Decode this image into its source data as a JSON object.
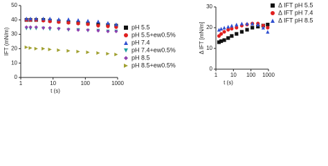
{
  "chart_data": [
    {
      "type": "scatter",
      "xlabel": "t (s)",
      "ylabel": "IFT (mN/m)",
      "xscale": "log",
      "xlim": [
        1,
        1000
      ],
      "xticks": [
        1,
        10,
        100,
        1000
      ],
      "ylim": [
        0,
        50
      ],
      "yticks": [
        0,
        10,
        20,
        30,
        40,
        50
      ],
      "x": [
        1.5,
        2,
        3,
        5,
        8,
        15,
        30,
        60,
        120,
        250,
        500,
        900
      ],
      "series": [
        {
          "name": "pH 5.5",
          "color": "#111111",
          "marker": "square",
          "values": [
            40,
            40,
            40,
            40,
            39.5,
            39,
            38.5,
            38,
            37.5,
            37,
            36.5,
            36
          ]
        },
        {
          "name": "pH 5.5+ew0.5%",
          "color": "#e02020",
          "marker": "circle",
          "values": [
            40,
            40,
            40,
            39.5,
            39,
            38.5,
            38,
            37.5,
            37,
            36,
            35.5,
            35
          ]
        },
        {
          "name": "pH 7.4",
          "color": "#3050d0",
          "marker": "triangle-up",
          "values": [
            41,
            41,
            41,
            41,
            41,
            40.5,
            40.5,
            40,
            39.5,
            39,
            38,
            37
          ]
        },
        {
          "name": "pH 7.4+ew0.5%",
          "color": "#20a0a0",
          "marker": "triangle-down",
          "values": [
            34,
            34,
            34,
            34,
            33.5,
            33.5,
            33,
            33,
            32.5,
            32.5,
            32,
            32
          ]
        },
        {
          "name": "pH 8.5",
          "color": "#9040b0",
          "marker": "diamond",
          "values": [
            35,
            35,
            35,
            34.5,
            34.5,
            34,
            33.5,
            33,
            33,
            32.5,
            32,
            32
          ]
        },
        {
          "name": "pH 8.5+ew0.5%",
          "color": "#a0a030",
          "marker": "triangle-right",
          "values": [
            21,
            20.5,
            20,
            20,
            19.5,
            19,
            18.5,
            18,
            17.5,
            17,
            16.5,
            16
          ]
        }
      ]
    },
    {
      "type": "scatter",
      "xlabel": "t (s)",
      "ylabel": "Δ IFT [mN/m]",
      "xscale": "log",
      "xlim": [
        1,
        1000
      ],
      "xticks": [
        1,
        10,
        100,
        1000
      ],
      "ylim": [
        0,
        30
      ],
      "yticks": [
        0,
        10,
        20,
        30
      ],
      "x": [
        1.5,
        2,
        3,
        5,
        8,
        15,
        30,
        60,
        120,
        250,
        500,
        900
      ],
      "series": [
        {
          "name": "Δ IFT pH 5.5",
          "color": "#111111",
          "marker": "square",
          "values": [
            13,
            13.5,
            14,
            15,
            16,
            17,
            18,
            19,
            20,
            20.5,
            21,
            21.5
          ]
        },
        {
          "name": "Δ IFT pH 7.4",
          "color": "#e02020",
          "marker": "circle",
          "values": [
            16,
            17,
            18,
            19,
            19.5,
            20,
            21,
            21.5,
            22,
            22,
            21,
            20
          ]
        },
        {
          "name": "Δ IFT pH 8.5",
          "color": "#3050d0",
          "marker": "triangle-up",
          "values": [
            19,
            19.5,
            20,
            20.5,
            21,
            21.5,
            22,
            22,
            22,
            21.5,
            20,
            18
          ]
        }
      ]
    }
  ]
}
